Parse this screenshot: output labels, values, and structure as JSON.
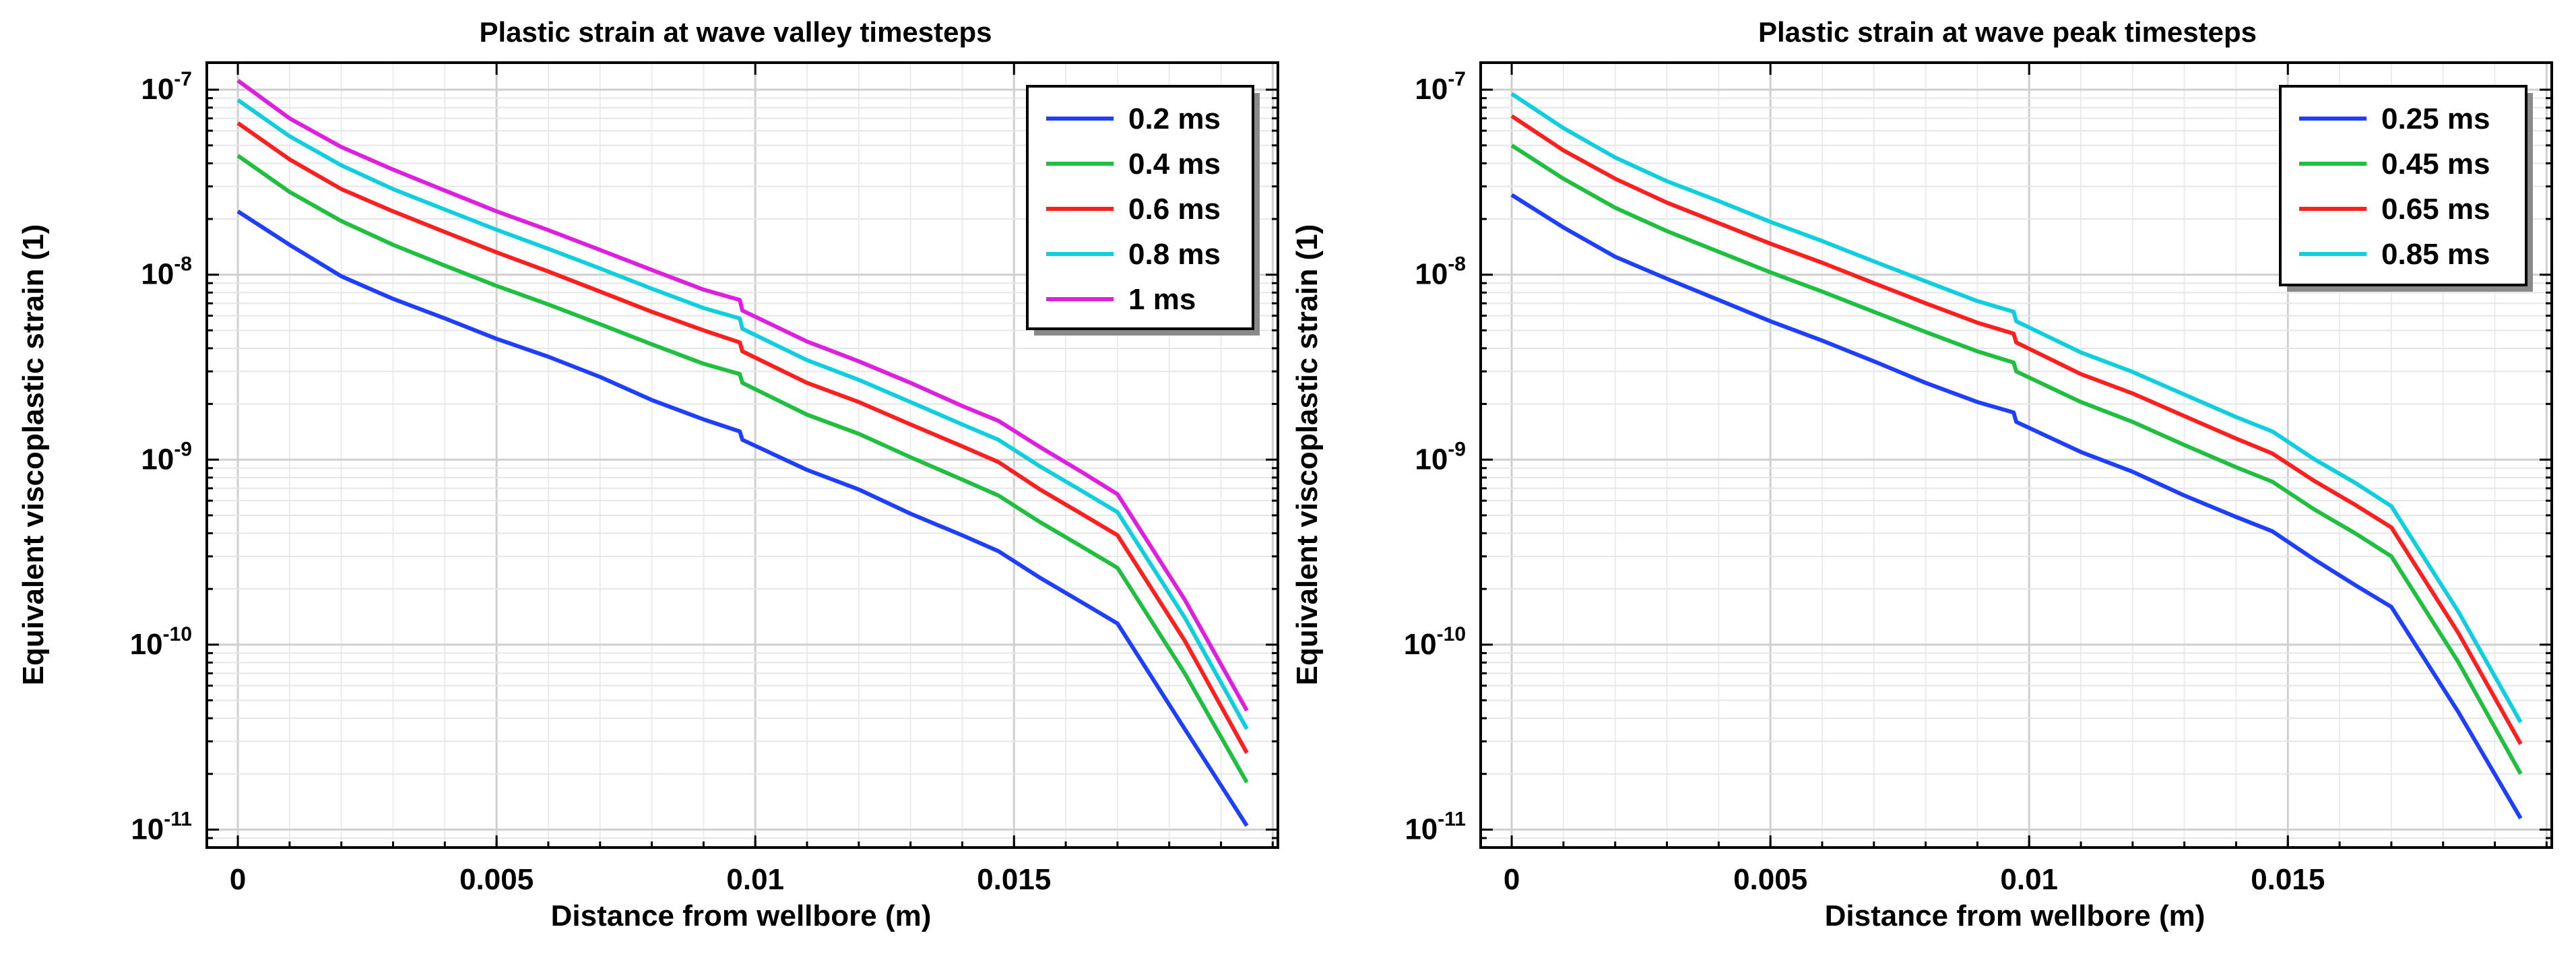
{
  "chart_data": [
    {
      "type": "line",
      "title": "Plastic strain at wave valley timesteps",
      "xlabel": "Distance from wellbore (m)",
      "ylabel": "Equivalent viscoplastic strain (1)",
      "yscale": "log",
      "xlim": [
        -0.0006,
        0.0201
      ],
      "ylim": [
        8e-12,
        1.4e-07
      ],
      "xticks": [
        0,
        0.005,
        0.01,
        0.015
      ],
      "xtick_labels": [
        "0",
        "0.005",
        "0.01",
        "0.015"
      ],
      "yticks": [
        1e-11,
        1e-10,
        1e-09,
        1e-08,
        1e-07
      ],
      "ytick_labels": [
        {
          "base": "10",
          "exp": "-11"
        },
        {
          "base": "10",
          "exp": "-10"
        },
        {
          "base": "10",
          "exp": "-9"
        },
        {
          "base": "10",
          "exp": "-8"
        },
        {
          "base": "10",
          "exp": "-7"
        }
      ],
      "grid": true,
      "legend_position": "top-right",
      "x": [
        0,
        0.001,
        0.002,
        0.003,
        0.004,
        0.005,
        0.006,
        0.007,
        0.008,
        0.009,
        0.0097,
        0.00975,
        0.011,
        0.012,
        0.013,
        0.014,
        0.0147,
        0.0155,
        0.0163,
        0.017,
        0.0183,
        0.0195
      ],
      "series": [
        {
          "name": "0.2 ms",
          "color": "#1f3fff",
          "values": [
            2.2e-08,
            1.45e-08,
            9.8e-09,
            7.4e-09,
            5.8e-09,
            4.5e-09,
            3.6e-09,
            2.8e-09,
            2.1e-09,
            1.65e-09,
            1.42e-09,
            1.28e-09,
            8.8e-10,
            6.9e-10,
            5.1e-10,
            3.9e-10,
            3.2e-10,
            2.3e-10,
            1.7e-10,
            1.3e-10,
            3.5e-11,
            1.05e-11
          ]
        },
        {
          "name": "0.4 ms",
          "color": "#1fbf3f",
          "values": [
            4.4e-08,
            2.8e-08,
            1.95e-08,
            1.45e-08,
            1.12e-08,
            8.7e-09,
            6.9e-09,
            5.4e-09,
            4.2e-09,
            3.3e-09,
            2.9e-09,
            2.6e-09,
            1.75e-09,
            1.38e-09,
            1.03e-09,
            7.8e-10,
            6.4e-10,
            4.6e-10,
            3.4e-10,
            2.6e-10,
            7e-11,
            1.8e-11
          ]
        },
        {
          "name": "0.6 ms",
          "color": "#ff1f1f",
          "values": [
            6.6e-08,
            4.2e-08,
            2.9e-08,
            2.2e-08,
            1.7e-08,
            1.32e-08,
            1.04e-08,
            8.1e-09,
            6.3e-09,
            5e-09,
            4.3e-09,
            3.85e-09,
            2.6e-09,
            2.05e-09,
            1.55e-09,
            1.18e-09,
            9.7e-10,
            6.9e-10,
            5.1e-10,
            3.9e-10,
            1.05e-10,
            2.6e-11
          ]
        },
        {
          "name": "0.8 ms",
          "color": "#0fcfdf",
          "values": [
            8.8e-08,
            5.6e-08,
            3.9e-08,
            2.9e-08,
            2.25e-08,
            1.75e-08,
            1.38e-08,
            1.08e-08,
            8.4e-09,
            6.6e-09,
            5.8e-09,
            5.1e-09,
            3.45e-09,
            2.7e-09,
            2.05e-09,
            1.55e-09,
            1.28e-09,
            9.2e-10,
            6.8e-10,
            5.2e-10,
            1.4e-10,
            3.5e-11
          ]
        },
        {
          "name": "1 ms",
          "color": "#df1fdf",
          "values": [
            1.12e-07,
            7e-08,
            4.9e-08,
            3.7e-08,
            2.85e-08,
            2.2e-08,
            1.74e-08,
            1.36e-08,
            1.06e-08,
            8.3e-09,
            7.3e-09,
            6.4e-09,
            4.35e-09,
            3.4e-09,
            2.6e-09,
            1.95e-09,
            1.62e-09,
            1.17e-09,
            8.6e-10,
            6.5e-10,
            1.75e-10,
            4.4e-11
          ]
        }
      ]
    },
    {
      "type": "line",
      "title": "Plastic strain at wave peak timesteps",
      "xlabel": "Distance from wellbore (m)",
      "ylabel": "Equivalent viscoplastic strain (1)",
      "yscale": "log",
      "xlim": [
        -0.0006,
        0.0201
      ],
      "ylim": [
        8e-12,
        1.4e-07
      ],
      "xticks": [
        0,
        0.005,
        0.01,
        0.015
      ],
      "xtick_labels": [
        "0",
        "0.005",
        "0.01",
        "0.015"
      ],
      "yticks": [
        1e-11,
        1e-10,
        1e-09,
        1e-08,
        1e-07
      ],
      "ytick_labels": [
        {
          "base": "10",
          "exp": "-11"
        },
        {
          "base": "10",
          "exp": "-10"
        },
        {
          "base": "10",
          "exp": "-9"
        },
        {
          "base": "10",
          "exp": "-8"
        },
        {
          "base": "10",
          "exp": "-7"
        }
      ],
      "grid": true,
      "legend_position": "top-right",
      "x": [
        0,
        0.001,
        0.002,
        0.003,
        0.004,
        0.005,
        0.006,
        0.007,
        0.008,
        0.009,
        0.0097,
        0.00975,
        0.011,
        0.012,
        0.013,
        0.014,
        0.0147,
        0.0155,
        0.0163,
        0.017,
        0.0183,
        0.0195
      ],
      "series": [
        {
          "name": "0.25 ms",
          "color": "#1f3fff",
          "values": [
            2.7e-08,
            1.8e-08,
            1.25e-08,
            9.5e-09,
            7.3e-09,
            5.6e-09,
            4.4e-09,
            3.4e-09,
            2.6e-09,
            2.05e-09,
            1.8e-09,
            1.6e-09,
            1.1e-09,
            8.6e-10,
            6.4e-10,
            4.9e-10,
            4.1e-10,
            2.9e-10,
            2.1e-10,
            1.6e-10,
            4.3e-11,
            1.15e-11
          ]
        },
        {
          "name": "0.45 ms",
          "color": "#1fbf3f",
          "values": [
            5e-08,
            3.3e-08,
            2.3e-08,
            1.72e-08,
            1.33e-08,
            1.03e-08,
            8.1e-09,
            6.3e-09,
            4.9e-09,
            3.85e-09,
            3.35e-09,
            3e-09,
            2.05e-09,
            1.6e-09,
            1.2e-09,
            9.1e-10,
            7.6e-10,
            5.4e-10,
            4e-10,
            3e-10,
            8e-11,
            2e-11
          ]
        },
        {
          "name": "0.65 ms",
          "color": "#ff1f1f",
          "values": [
            7.2e-08,
            4.7e-08,
            3.3e-08,
            2.45e-08,
            1.9e-08,
            1.47e-08,
            1.16e-08,
            9e-09,
            7e-09,
            5.5e-09,
            4.8e-09,
            4.3e-09,
            2.9e-09,
            2.28e-09,
            1.72e-09,
            1.3e-09,
            1.08e-09,
            7.7e-10,
            5.7e-10,
            4.3e-10,
            1.15e-10,
            2.9e-11
          ]
        },
        {
          "name": "0.85 ms",
          "color": "#0fcfdf",
          "values": [
            9.5e-08,
            6.2e-08,
            4.3e-08,
            3.2e-08,
            2.5e-08,
            1.93e-08,
            1.52e-08,
            1.18e-08,
            9.2e-09,
            7.2e-09,
            6.3e-09,
            5.6e-09,
            3.8e-09,
            2.98e-09,
            2.25e-09,
            1.7e-09,
            1.42e-09,
            1.01e-09,
            7.5e-10,
            5.6e-10,
            1.5e-10,
            3.8e-11
          ]
        }
      ]
    }
  ]
}
